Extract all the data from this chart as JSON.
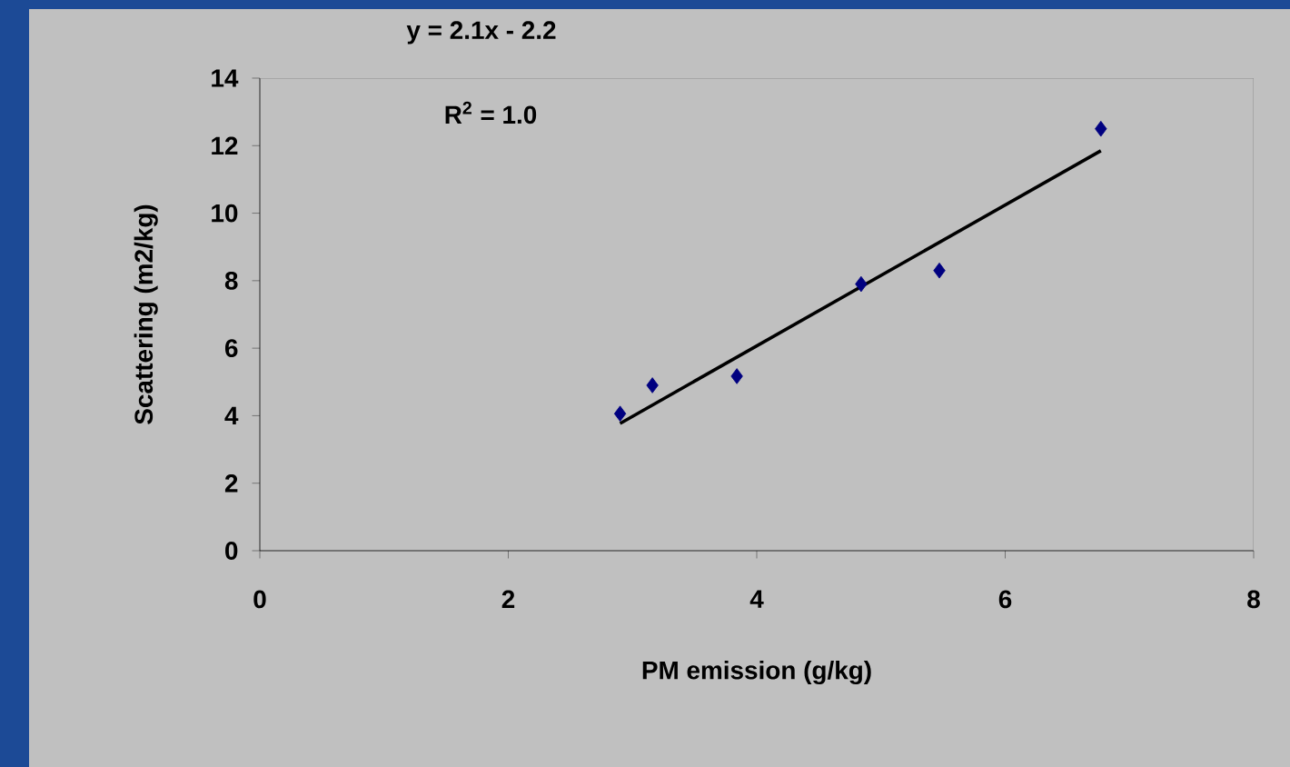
{
  "chart_data": {
    "type": "scatter",
    "xlabel": "PM emission (g/kg)",
    "ylabel": "Scattering (m2/kg)",
    "annotations": [
      "y = 2.1x - 2.2",
      "R$^{2}$ = 1.0"
    ],
    "series": [
      {
        "color": "#000080",
        "marker": "diamond",
        "x": [
          2.9,
          3.16,
          3.84,
          4.84,
          5.47,
          6.77
        ],
        "values": [
          4.06,
          4.9,
          5.17,
          7.9,
          8.3,
          12.5
        ]
      },
      {
        "type": "line",
        "color": "#000000",
        "line_style": "solid",
        "marker": "none",
        "x": [
          2.9,
          6.77
        ],
        "values": [
          3.77,
          11.85
        ]
      }
    ],
    "xlim": [
      0,
      8
    ],
    "ylim": [
      0,
      14
    ],
    "xticks": [
      0,
      2,
      4,
      6,
      8
    ],
    "yticks": [
      0,
      2,
      4,
      6,
      8,
      10,
      12,
      14
    ],
    "grid": false
  }
}
